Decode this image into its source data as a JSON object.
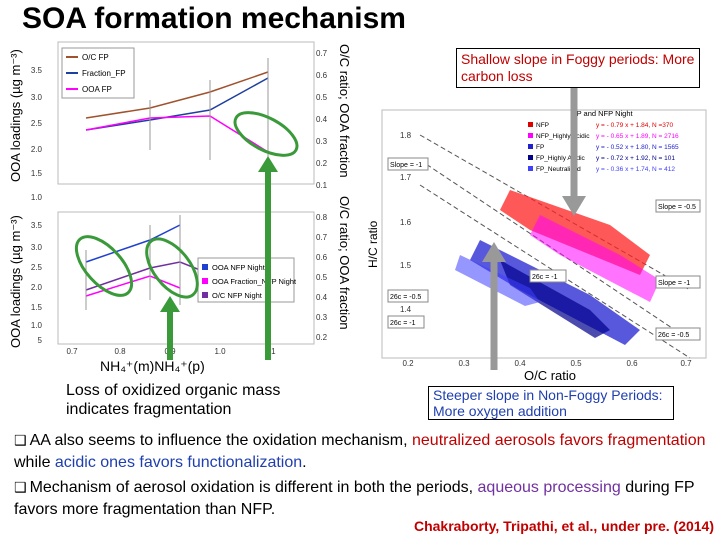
{
  "slide": {
    "title": "SOA formation mechanism",
    "left_panel": {
      "top_ylabel": "OOA loadings (µg m⁻³)",
      "bottom_ylabel": "OOA loadings (µg m⁻³)",
      "right_ylabel_top": "O/C ratio; OOA fraction",
      "right_ylabel_bottom": "O/C ratio; OOA fraction",
      "xlabel": "NH₄⁺(m)NH₄⁺(p)",
      "top_legend": [
        "O/C FP",
        "Fraction_FP",
        "OOA FP"
      ],
      "bottom_legend": [
        "OOA NFP Night",
        "OOA Fraction_NFP Night",
        "O/C NFP Night"
      ],
      "top_left_ticks": [
        "3.5",
        "3.0",
        "2.5",
        "2.0",
        "1.5",
        "1.0"
      ],
      "top_right_ticks": [
        "0.7",
        "0.6",
        "0.5",
        "0.4",
        "0.3",
        "0.2",
        "0.1"
      ],
      "bottom_left_ticks": [
        "3.5",
        "3.0",
        "2.5",
        "2.0",
        "1.5",
        "1.0",
        "5"
      ],
      "bottom_right_ticks": [
        "0.8",
        "0.7",
        "0.6",
        "0.5",
        "0.4",
        "0.3",
        "0.2"
      ],
      "x_ticks": [
        "0.7",
        "0.8",
        "0.9",
        "1.0",
        "1.1"
      ]
    },
    "right_panel": {
      "ylabel": "H/C ratio",
      "xlabel": "O/C ratio",
      "y_ticks": [
        "1.8",
        "1.7",
        "1.6",
        "1.5",
        "1.4"
      ],
      "x_ticks": [
        "0.2",
        "0.3",
        "0.4",
        "0.5",
        "0.6",
        "0.7"
      ],
      "legend_title": "FP and NFP Night",
      "legend": [
        {
          "label": "NFP",
          "eq": "y = - 0.79 x + 1.84, N =370",
          "color": "#e00000"
        },
        {
          "label": "NFP_Highly Acidic",
          "eq": "y = - 0.65 x + 1.89, N = 2716",
          "color": "#ff00ff"
        },
        {
          "label": "FP",
          "eq": "y = - 0.52 x + 1.80, N = 1565",
          "color": "#2020d0"
        },
        {
          "label": "FP_Highly Acidic",
          "eq": "y = - 0.72 x + 1.92, N = 101",
          "color": "#00008b"
        },
        {
          "label": "FP_Neutralized",
          "eq": "y = - 0.36 x + 1.74, N = 412",
          "color": "#4040ff"
        }
      ],
      "slope_labels": [
        "Slope = -1",
        "Slope = -0.5",
        "Slope = -1",
        "26c = -1",
        "26c = -0.5",
        "26c = -1",
        "26c = -0.5"
      ]
    },
    "callout_foggy": "Shallow slope in Foggy periods: More carbon loss",
    "callout_fragmentation": "Loss of oxidized organic mass indicates fragmentation",
    "callout_nonfoggy": "Steeper slope in Non-Foggy Periods: More oxygen addition",
    "bullets": [
      {
        "parts": [
          {
            "text": "AA also seems to influence the oxidation mechanism, ",
            "cls": ""
          },
          {
            "text": "neutralized aerosols favors fragmentation",
            "cls": "red"
          },
          {
            "text": " while ",
            "cls": ""
          },
          {
            "text": "acidic ones favors functionalization",
            "cls": "blue"
          },
          {
            "text": ".",
            "cls": ""
          }
        ]
      },
      {
        "parts": [
          {
            "text": "Mechanism of aerosol oxidation is different in both the periods, ",
            "cls": ""
          },
          {
            "text": "aqueous processing",
            "cls": "purple"
          },
          {
            "text": " during FP favors more fragmentation than NFP.",
            "cls": ""
          }
        ]
      }
    ],
    "citation": "Chakraborty, Tripathi, et al., under pre. (2014)",
    "colors": {
      "citation": "#c00000",
      "highlight": "#c00000",
      "acidic": "#1f3fb0",
      "aqueous": "#7030a0",
      "circle": "#3a9a3a",
      "arrow": "#999999"
    }
  }
}
